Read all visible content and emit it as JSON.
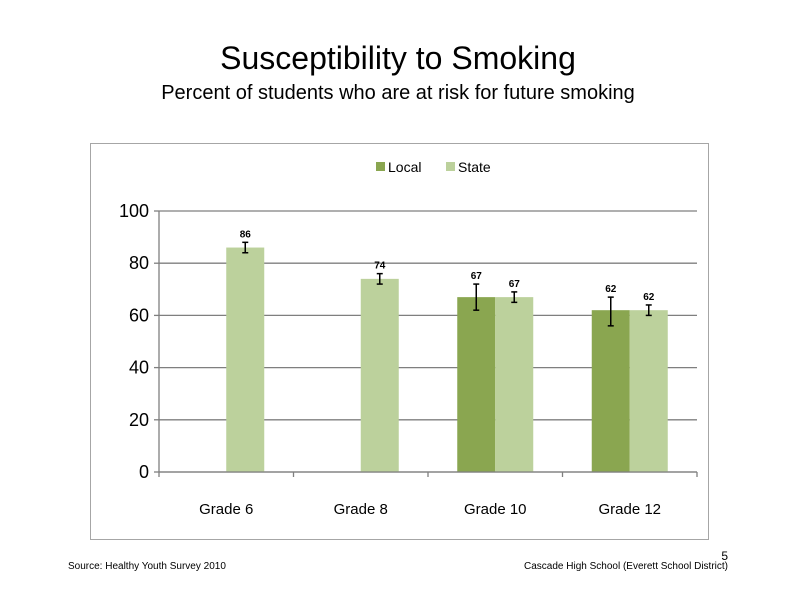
{
  "slide": {
    "title": "Susceptibility to Smoking",
    "subtitle": "Percent of students who are at risk for future smoking",
    "source": "Source: Healthy Youth Survey 2010",
    "school": "Cascade High School (Everett School District)",
    "page_number": "5"
  },
  "chart_data": {
    "type": "bar",
    "title": "",
    "xlabel": "",
    "ylabel": "",
    "categories": [
      "Grade 6",
      "Grade 8",
      "Grade 10",
      "Grade 12"
    ],
    "ylim": [
      0,
      100
    ],
    "yticks": [
      0,
      20,
      40,
      60,
      80,
      100
    ],
    "grid": true,
    "legend_position": "top-center",
    "series": [
      {
        "name": "Local",
        "color": "#8aa650",
        "values": [
          null,
          null,
          67,
          62
        ],
        "error_low": [
          null,
          null,
          62,
          56
        ],
        "error_high": [
          null,
          null,
          72,
          67
        ],
        "labels": [
          "",
          "",
          "67",
          "62"
        ]
      },
      {
        "name": "State",
        "color": "#bcd19c",
        "values": [
          86,
          74,
          67,
          62
        ],
        "error_low": [
          84,
          72,
          65,
          60
        ],
        "error_high": [
          88,
          76,
          69,
          64
        ],
        "labels": [
          "86",
          "74",
          "67",
          "62"
        ]
      }
    ]
  }
}
